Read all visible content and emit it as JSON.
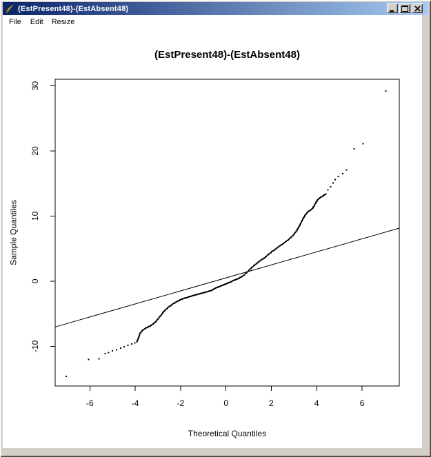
{
  "window": {
    "title": "(EstPresent48)-(EstAbsent48)",
    "icon": "r-graphics-quill-icon",
    "controls": {
      "minimize": "minimize",
      "maximize": "maximize",
      "close": "close"
    },
    "menu": [
      "File",
      "Edit",
      "Resize"
    ]
  },
  "colors": {
    "titlebar_left": "#0a246a",
    "titlebar_right": "#a6caf0",
    "frame": "#d4d0c8",
    "client_bg": "#ffffff",
    "ink": "#000000",
    "quill_gold": "#c8a030"
  },
  "chart_data": {
    "type": "scatter",
    "title": "(EstPresent48)-(EstAbsent48)",
    "xlabel": "Theoretical Quantiles",
    "ylabel": "Sample Quantiles",
    "xlim": [
      -7.53,
      7.64
    ],
    "ylim": [
      -16.1,
      31.0
    ],
    "x_ticks": [
      -6,
      -4,
      -2,
      0,
      2,
      4,
      6
    ],
    "y_ticks": [
      -10,
      0,
      10,
      20,
      30
    ],
    "grid": false,
    "box": true,
    "legend": null,
    "ref_line": {
      "slope": 1.0,
      "intercept": 0.5
    },
    "dense_spacing_px": 1.4,
    "curve_keypoints": [
      [
        -3.92,
        -9.3
      ],
      [
        -3.86,
        -8.8
      ],
      [
        -3.8,
        -8.1
      ],
      [
        -3.72,
        -7.7
      ],
      [
        -3.62,
        -7.4
      ],
      [
        -3.5,
        -7.15
      ],
      [
        -3.38,
        -6.95
      ],
      [
        -3.26,
        -6.7
      ],
      [
        -3.14,
        -6.35
      ],
      [
        -3.02,
        -5.9
      ],
      [
        -2.9,
        -5.35
      ],
      [
        -2.78,
        -4.85
      ],
      [
        -2.66,
        -4.4
      ],
      [
        -2.54,
        -4.0
      ],
      [
        -2.42,
        -3.7
      ],
      [
        -2.3,
        -3.42
      ],
      [
        -2.18,
        -3.18
      ],
      [
        -2.06,
        -2.95
      ],
      [
        -1.94,
        -2.78
      ],
      [
        -1.82,
        -2.62
      ],
      [
        -1.7,
        -2.48
      ],
      [
        -1.55,
        -2.32
      ],
      [
        -1.4,
        -2.17
      ],
      [
        -1.25,
        -2.02
      ],
      [
        -1.1,
        -1.88
      ],
      [
        -0.95,
        -1.75
      ],
      [
        -0.8,
        -1.6
      ],
      [
        -0.65,
        -1.44
      ],
      [
        -0.5,
        -1.15
      ],
      [
        -0.35,
        -0.92
      ],
      [
        -0.2,
        -0.7
      ],
      [
        -0.05,
        -0.48
      ],
      [
        0.1,
        -0.26
      ],
      [
        0.25,
        -0.04
      ],
      [
        0.4,
        0.18
      ],
      [
        0.55,
        0.42
      ],
      [
        0.7,
        0.7
      ],
      [
        0.82,
        1.02
      ],
      [
        0.94,
        1.4
      ],
      [
        1.06,
        1.82
      ],
      [
        1.18,
        2.22
      ],
      [
        1.3,
        2.6
      ],
      [
        1.42,
        2.92
      ],
      [
        1.54,
        3.2
      ],
      [
        1.66,
        3.5
      ],
      [
        1.78,
        3.82
      ],
      [
        1.9,
        4.18
      ],
      [
        2.02,
        4.52
      ],
      [
        2.14,
        4.82
      ],
      [
        2.26,
        5.1
      ],
      [
        2.38,
        5.42
      ],
      [
        2.5,
        5.72
      ],
      [
        2.62,
        6.02
      ],
      [
        2.74,
        6.35
      ],
      [
        2.86,
        6.7
      ],
      [
        2.98,
        7.1
      ],
      [
        3.1,
        7.65
      ],
      [
        3.2,
        8.25
      ],
      [
        3.3,
        8.9
      ],
      [
        3.4,
        9.6
      ],
      [
        3.5,
        10.2
      ],
      [
        3.6,
        10.6
      ],
      [
        3.7,
        10.85
      ],
      [
        3.8,
        11.1
      ],
      [
        3.88,
        11.55
      ],
      [
        3.96,
        12.05
      ],
      [
        4.04,
        12.5
      ],
      [
        4.14,
        12.8
      ],
      [
        4.26,
        13.05
      ],
      [
        4.4,
        13.4
      ]
    ],
    "lower_tail_points": [
      [
        -7.04,
        -14.6
      ],
      [
        -6.06,
        -12.05
      ],
      [
        -5.6,
        -11.9
      ],
      [
        -5.32,
        -11.15
      ],
      [
        -5.18,
        -10.95
      ],
      [
        -5.0,
        -10.72
      ],
      [
        -4.82,
        -10.52
      ],
      [
        -4.64,
        -10.28
      ],
      [
        -4.49,
        -10.06
      ],
      [
        -4.32,
        -9.86
      ],
      [
        -4.15,
        -9.64
      ],
      [
        -4.02,
        -9.46
      ]
    ],
    "upper_tail_points": [
      [
        4.5,
        14.0
      ],
      [
        4.62,
        14.5
      ],
      [
        4.72,
        15.05
      ],
      [
        4.82,
        15.6
      ],
      [
        4.95,
        16.1
      ],
      [
        5.15,
        16.5
      ],
      [
        5.32,
        17.1
      ],
      [
        5.65,
        20.3
      ],
      [
        6.05,
        21.1
      ],
      [
        7.05,
        29.2
      ]
    ]
  }
}
